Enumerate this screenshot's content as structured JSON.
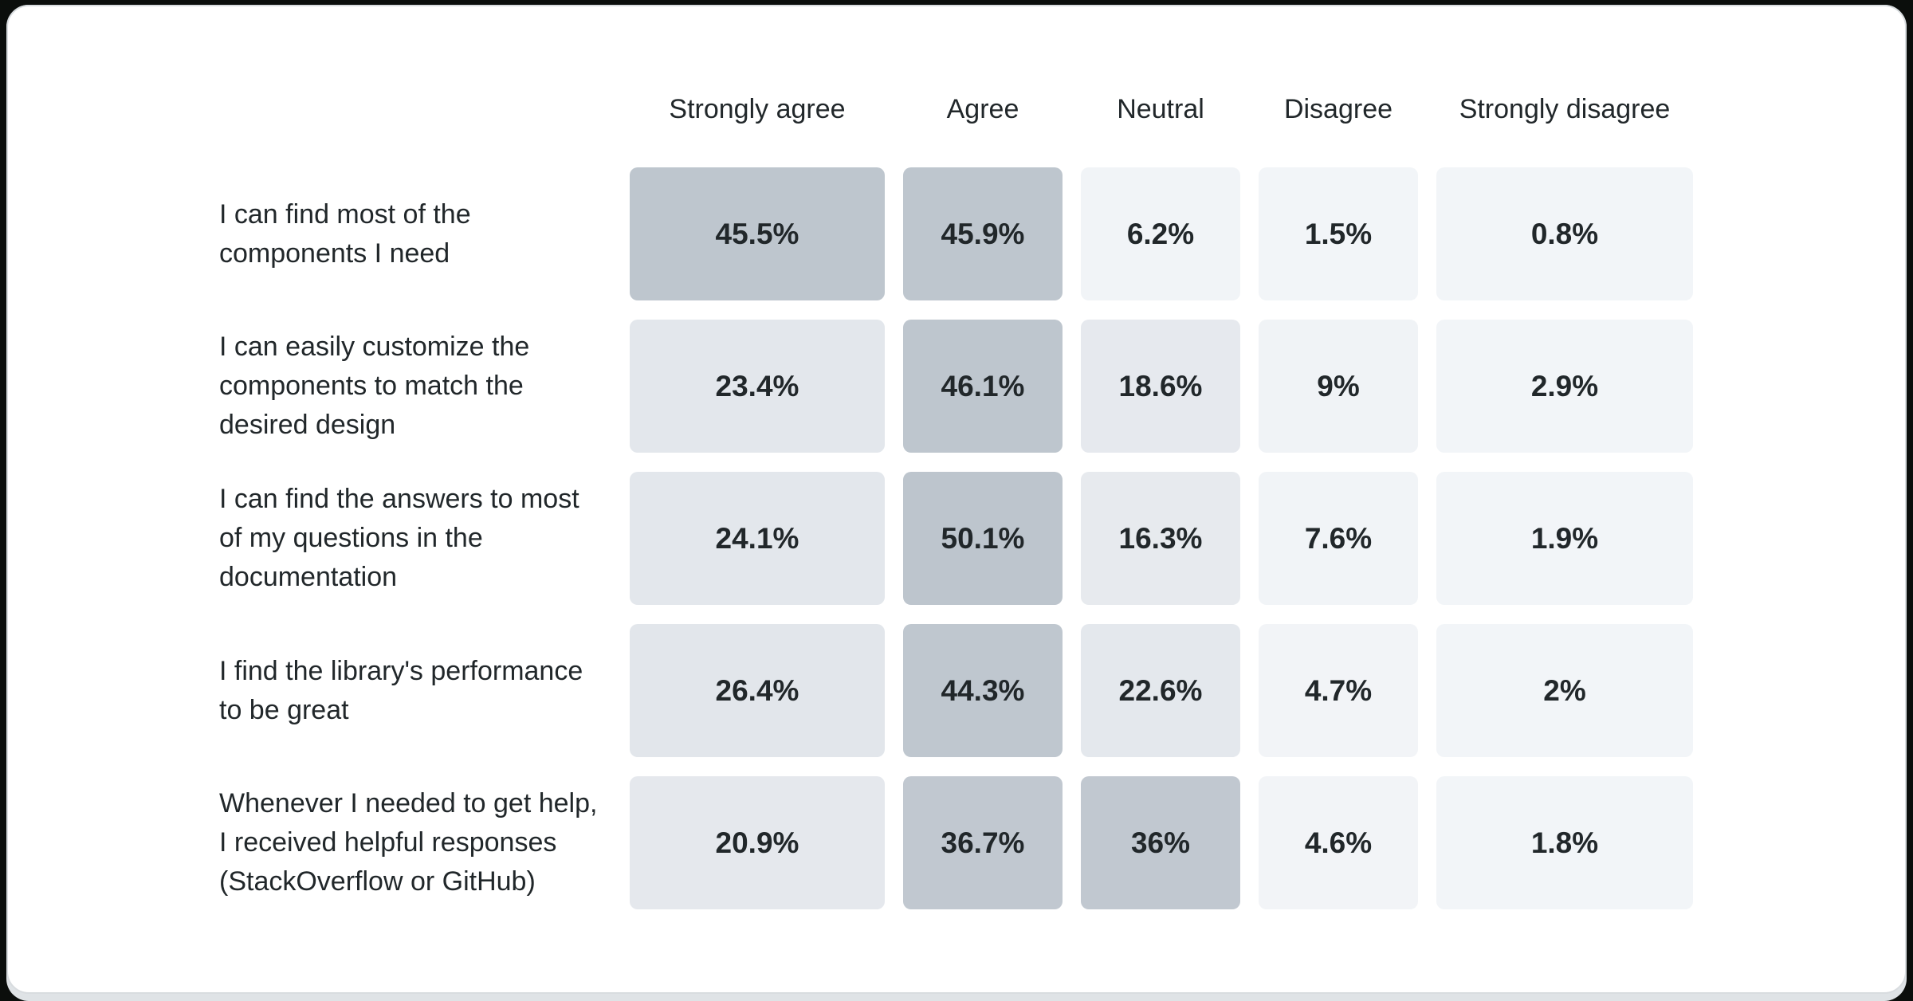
{
  "page": {
    "background": "#0b0e0c",
    "card_background": "#ffffff",
    "card_border": "#d8dcdf",
    "bottom_strip_color": "#dfe3e6",
    "text_color": "#21272a"
  },
  "survey_matrix": {
    "columns": [
      {
        "label": "Strongly agree"
      },
      {
        "label": "Agree"
      },
      {
        "label": "Neutral"
      },
      {
        "label": "Disagree"
      },
      {
        "label": "Strongly disagree"
      }
    ],
    "rows": [
      {
        "label": "I can find most of the\ncomponents I need",
        "cells": [
          {
            "value": "45.5%",
            "color": "#bec6ce"
          },
          {
            "value": "45.9%",
            "color": "#bec6ce"
          },
          {
            "value": "6.2%",
            "color": "#f1f4f7"
          },
          {
            "value": "1.5%",
            "color": "#f2f5f8"
          },
          {
            "value": "0.8%",
            "color": "#f2f5f8"
          }
        ]
      },
      {
        "label": "I can easily customize the\ncomponents to match the\ndesired design",
        "cells": [
          {
            "value": "23.4%",
            "color": "#e3e7ec"
          },
          {
            "value": "46.1%",
            "color": "#bec6ce"
          },
          {
            "value": "18.6%",
            "color": "#e6e9ee"
          },
          {
            "value": "9%",
            "color": "#f0f3f6"
          },
          {
            "value": "2.9%",
            "color": "#f2f5f8"
          }
        ]
      },
      {
        "label": "I can find the answers to most\nof my questions in the\ndocumentation",
        "cells": [
          {
            "value": "24.1%",
            "color": "#e3e7ec"
          },
          {
            "value": "50.1%",
            "color": "#bdc5cd"
          },
          {
            "value": "16.3%",
            "color": "#e7eaee"
          },
          {
            "value": "7.6%",
            "color": "#f1f4f7"
          },
          {
            "value": "1.9%",
            "color": "#f2f5f8"
          }
        ]
      },
      {
        "label": "I find the library's performance\nto be great",
        "cells": [
          {
            "value": "26.4%",
            "color": "#e2e6eb"
          },
          {
            "value": "44.3%",
            "color": "#bfc7cf"
          },
          {
            "value": "22.6%",
            "color": "#e4e8ed"
          },
          {
            "value": "4.7%",
            "color": "#f2f4f7"
          },
          {
            "value": "2%",
            "color": "#f2f5f8"
          }
        ]
      },
      {
        "label": "Whenever I needed to get help,\nI received helpful responses\n(StackOverflow or GitHub)",
        "cells": [
          {
            "value": "20.9%",
            "color": "#e5e8ed"
          },
          {
            "value": "36.7%",
            "color": "#c1c8d0"
          },
          {
            "value": "36%",
            "color": "#c1c8d0"
          },
          {
            "value": "4.6%",
            "color": "#f2f4f7"
          },
          {
            "value": "1.8%",
            "color": "#f2f5f8"
          }
        ]
      }
    ]
  },
  "chart_data": {
    "type": "heatmap",
    "title": "",
    "columns": [
      "Strongly agree",
      "Agree",
      "Neutral",
      "Disagree",
      "Strongly disagree"
    ],
    "rows": [
      "I can find most of the components I need",
      "I can easily customize the components to match the desired design",
      "I can find the answers to most of my questions in the documentation",
      "I find the library's performance to be great",
      "Whenever I needed to get help, I received helpful responses (StackOverflow or GitHub)"
    ],
    "values": [
      [
        45.5,
        45.9,
        6.2,
        1.5,
        0.8
      ],
      [
        23.4,
        46.1,
        18.6,
        9.0,
        2.9
      ],
      [
        24.1,
        50.1,
        16.3,
        7.6,
        1.9
      ],
      [
        26.4,
        44.3,
        22.6,
        4.7,
        2.0
      ],
      [
        20.9,
        36.7,
        36.0,
        4.6,
        1.8
      ]
    ],
    "value_unit": "percent",
    "color_scale": {
      "low_value_color": "#f2f5f8",
      "high_value_color": "#bdc5cd"
    },
    "legend_position": "none",
    "grid": false
  }
}
